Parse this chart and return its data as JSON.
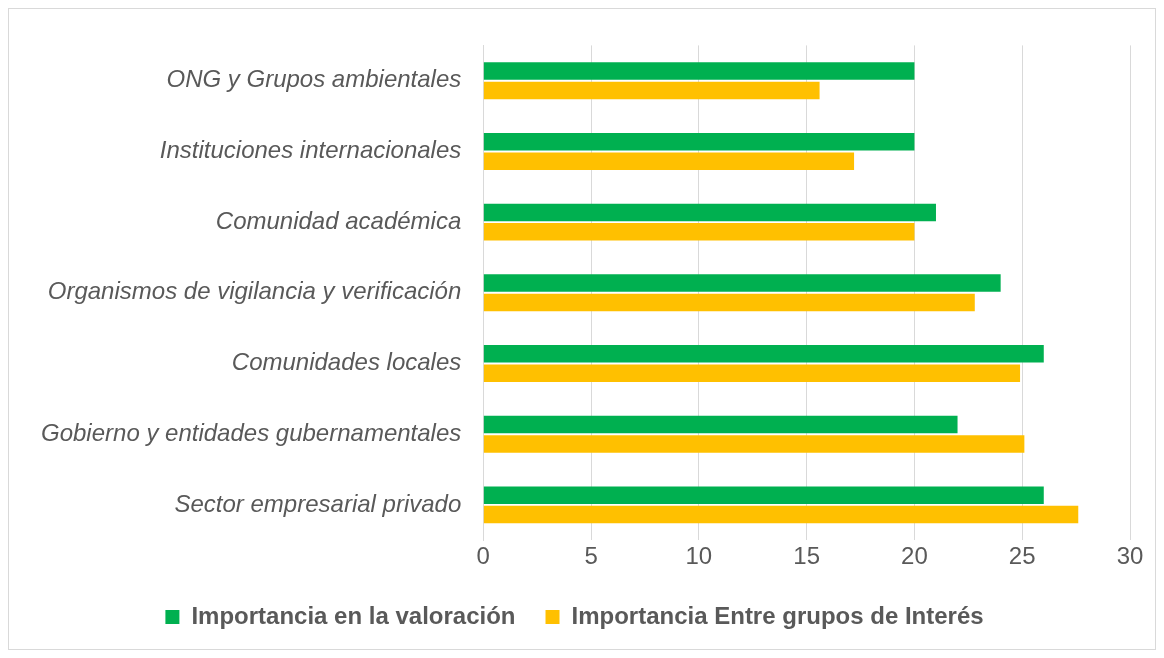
{
  "chart_data": {
    "type": "bar",
    "orientation": "horizontal",
    "categories": [
      "ONG y Grupos ambientales",
      "Instituciones internacionales",
      "Comunidad académica",
      "Organismos de vigilancia y verificación",
      "Comunidades locales",
      "Gobierno y entidades gubernamentales",
      "Sector empresarial privado"
    ],
    "series": [
      {
        "name": "Importancia en la valoración",
        "color": "#00b050",
        "values": [
          20,
          20,
          21,
          24,
          26,
          22,
          26
        ]
      },
      {
        "name": "Importancia Entre grupos de Interés",
        "color": "#ffc000",
        "values": [
          15.6,
          17.2,
          20,
          22.8,
          24.9,
          25.1,
          27.6
        ]
      }
    ],
    "xlim": [
      0,
      30
    ],
    "xticks": [
      0,
      5,
      10,
      15,
      20,
      25,
      30
    ],
    "grid": "x",
    "legend": "bottom"
  }
}
